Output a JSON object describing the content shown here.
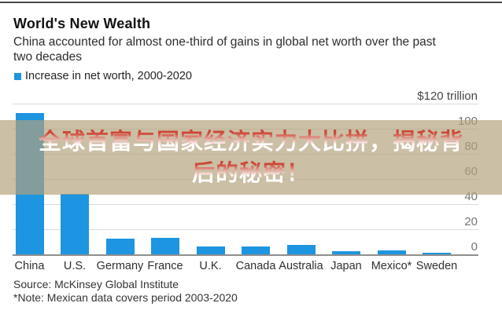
{
  "header": {
    "title": "World's New Wealth",
    "subtitle": "China accounted for almost one-third of gains in global net worth over the past two decades",
    "subtitle_lines": [
      "China accounted for almost one-third of gains in global net worth over the past",
      "two decades"
    ],
    "legend_label": "Increase in net worth, 2000-2020"
  },
  "chart_data": {
    "type": "bar",
    "title": "World's New Wealth",
    "subtitle": "China accounted for almost one-third of gains in global net worth over the past two decades",
    "legend": "Increase in net worth, 2000-2020",
    "unit": "USD trillion",
    "categories": [
      "China",
      "U.S.",
      "Germany",
      "France",
      "U.K.",
      "Canada",
      "Australia",
      "Japan",
      "Mexico*",
      "Sweden"
    ],
    "values": [
      113,
      49,
      13,
      14,
      7,
      7,
      8,
      3,
      4,
      2
    ],
    "xlabel": "",
    "ylabel": "$ trillion",
    "ylim": [
      0,
      120
    ],
    "grid": true,
    "legend_position": "top-left",
    "yticks": [
      {
        "label": "$120 trillion",
        "value": 120
      },
      {
        "label": "100",
        "value": 100
      },
      {
        "label": "80",
        "value": 80
      },
      {
        "label": "60",
        "value": 60
      },
      {
        "label": "40",
        "value": 40
      },
      {
        "label": "20",
        "value": 20
      },
      {
        "label": "0",
        "value": 0
      }
    ],
    "bar_color": "#1d95e0"
  },
  "overlay": {
    "line1": "全球首富与国家经济实力大比拼，揭秘背",
    "line2": "后的秘密！",
    "band_color": "rgba(178,161,123,0.68)",
    "text_top_color": "#c4402f",
    "text_bottom_color": "#ffffff"
  },
  "footer": {
    "source": "Source: McKinsey Global Institute",
    "note": "*Note: Mexican data covers period 2003-2020"
  }
}
